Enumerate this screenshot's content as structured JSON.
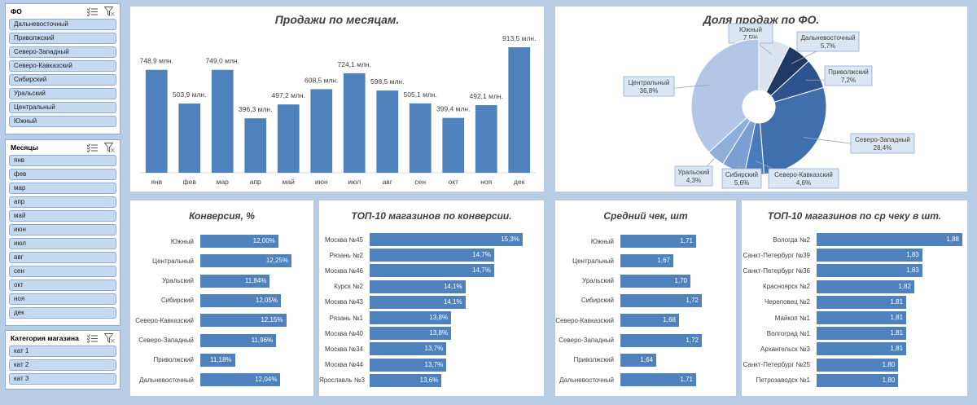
{
  "slicers": {
    "fo": {
      "title": "ФО",
      "items": [
        "Дальневосточный",
        "Приволжский",
        "Северо-Западный",
        "Северо-Кавказский",
        "Сибирский",
        "Уральский",
        "Центральный",
        "Южный"
      ]
    },
    "months": {
      "title": "Месяцы",
      "items": [
        "янв",
        "фев",
        "мар",
        "апр",
        "май",
        "июн",
        "июл",
        "авг",
        "сен",
        "окт",
        "ноя",
        "дек"
      ]
    },
    "category": {
      "title": "Категория магазина",
      "items": [
        "кат 1",
        "кат 2",
        "кат 3"
      ]
    }
  },
  "colors": {
    "bar": "#4f81bd",
    "slicer_item": "#c5d9f1",
    "background": "#b8cce4"
  },
  "chart_data": [
    {
      "id": "monthly",
      "type": "bar",
      "title": "Продажи по месяцам.",
      "categories": [
        "янв",
        "фев",
        "мар",
        "апр",
        "май",
        "июн",
        "июл",
        "авг",
        "сен",
        "окт",
        "ноя",
        "дек"
      ],
      "values": [
        748.9,
        503.9,
        749.0,
        396.3,
        497.2,
        608.5,
        724.1,
        598.5,
        505.1,
        399.4,
        492.1,
        913.5
      ],
      "labels": [
        "748,9 млн.",
        "503,9 млн.",
        "749,0 млн.",
        "396,3 млн.",
        "497,2 млн.",
        "608,5 млн.",
        "724,1 млн.",
        "598,5 млн.",
        "505,1 млн.",
        "399,4 млн.",
        "492,1 млн.",
        "913,5 млн."
      ]
    },
    {
      "id": "share",
      "type": "pie",
      "title": "Доля продаж по ФО.",
      "slices": [
        {
          "name": "Южный",
          "value": 7.5,
          "label": "7,5%",
          "color": "#dbe3f0"
        },
        {
          "name": "Дальневосточный",
          "value": 5.7,
          "label": "5,7%",
          "color": "#1f3864"
        },
        {
          "name": "Приволжский",
          "value": 7.2,
          "label": "7,2%",
          "color": "#2e5490"
        },
        {
          "name": "Северо-Западный",
          "value": 28.4,
          "label": "28,4%",
          "color": "#3f6fad"
        },
        {
          "name": "Северо-Кавказский",
          "value": 4.6,
          "label": "4,6%",
          "color": "#4a7bbd"
        },
        {
          "name": "Сибирский",
          "value": 5.6,
          "label": "5,6%",
          "color": "#7b9fd2"
        },
        {
          "name": "Уральский",
          "value": 4.3,
          "label": "4,3%",
          "color": "#8eaedb"
        },
        {
          "name": "Центральный",
          "value": 36.8,
          "label": "36,8%",
          "color": "#b4c6e7"
        }
      ]
    },
    {
      "id": "conversion",
      "type": "bar",
      "orientation": "horizontal",
      "title": "Конверсия, %",
      "categories": [
        "Южный",
        "Центральный",
        "Уральский",
        "Сибирский",
        "Северо-Кавказский",
        "Северо-Западный",
        "Приволжский",
        "Дальневосточный"
      ],
      "values": [
        12.0,
        12.25,
        11.84,
        12.05,
        12.15,
        11.96,
        11.18,
        12.04
      ],
      "labels": [
        "12,00%",
        "12,25%",
        "11,84%",
        "12,05%",
        "12,15%",
        "11,96%",
        "11,18%",
        "12,04%"
      ]
    },
    {
      "id": "top_conv",
      "type": "bar",
      "orientation": "horizontal",
      "title": "ТОП-10 магазинов по конверсии.",
      "categories": [
        "Москва №45",
        "Рязань №2",
        "Москва №46",
        "Курск №2",
        "Москва №43",
        "Рязань №1",
        "Москва №40",
        "Москва №34",
        "Москва №44",
        "Ярославль №3"
      ],
      "values": [
        15.3,
        14.7,
        14.7,
        14.1,
        14.1,
        13.8,
        13.8,
        13.7,
        13.7,
        13.6
      ],
      "labels": [
        "15,3%",
        "14,7%",
        "14,7%",
        "14,1%",
        "14,1%",
        "13,8%",
        "13,8%",
        "13,7%",
        "13,7%",
        "13,6%"
      ]
    },
    {
      "id": "avg_check",
      "type": "bar",
      "orientation": "horizontal",
      "title": "Средний чек, шт",
      "categories": [
        "Южный",
        "Центральный",
        "Уральский",
        "Сибирский",
        "Северо-Кавказский",
        "Северо-Западный",
        "Приволжский",
        "Дальневосточный"
      ],
      "values": [
        1.71,
        1.67,
        1.7,
        1.72,
        1.68,
        1.72,
        1.64,
        1.71
      ],
      "labels": [
        "1,71",
        "1,67",
        "1,70",
        "1,72",
        "1,68",
        "1,72",
        "1,64",
        "1,71"
      ]
    },
    {
      "id": "top_check",
      "type": "bar",
      "orientation": "horizontal",
      "title": "ТОП-10 магазинов по ср чеку в шт.",
      "categories": [
        "Вологда №2",
        "Санкт-Петербург №39",
        "Санкт-Петербург №36",
        "Красноярск №2",
        "Череповец №2",
        "Майкоп №1",
        "Волгоград №1",
        "Архангельск №3",
        "Санкт-Петербург №25",
        "Петрозаводск №1"
      ],
      "values": [
        1.88,
        1.83,
        1.83,
        1.82,
        1.81,
        1.81,
        1.81,
        1.81,
        1.8,
        1.8
      ],
      "labels": [
        "1,88",
        "1,83",
        "1,83",
        "1,82",
        "1,81",
        "1,81",
        "1,81",
        "1,81",
        "1,80",
        "1,80"
      ]
    }
  ]
}
